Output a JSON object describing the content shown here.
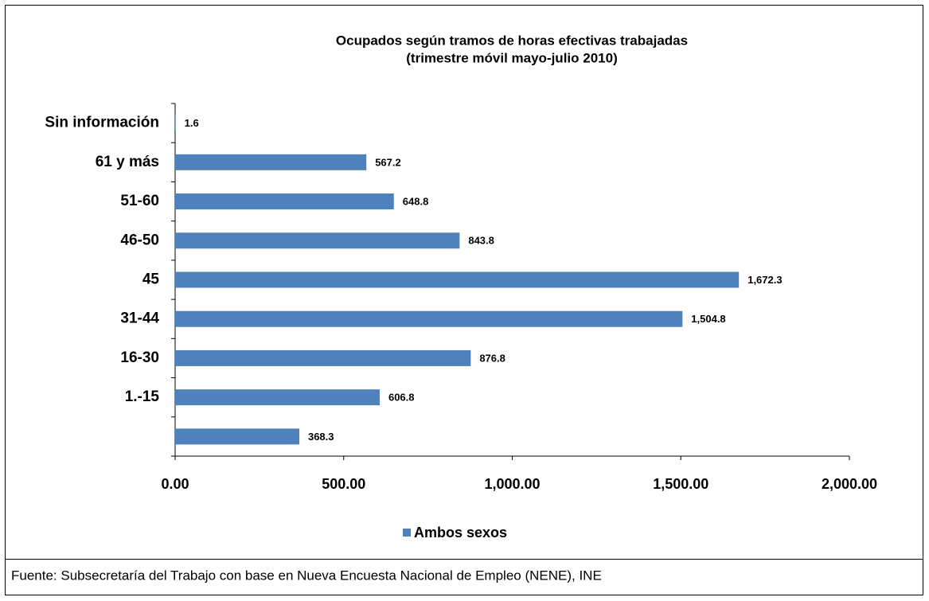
{
  "chart_data": {
    "type": "bar",
    "orientation": "horizontal",
    "title": "Ocupados según tramos de horas efectivas trabajadas",
    "subtitle": "(trimestre móvil mayo-julio 2010)",
    "categories": [
      "Sin información",
      "61 y más",
      "51-60",
      "46-50",
      "45",
      "31-44",
      "16-30",
      "1.-15",
      null
    ],
    "series": [
      {
        "name": "Ambos sexos",
        "color": "#4f81bd",
        "values": [
          1.6,
          567.2,
          648.8,
          843.8,
          1672.3,
          1504.8,
          876.8,
          606.8,
          368.3
        ],
        "value_labels": [
          "1.6",
          "567.2",
          "648.8",
          "843.8",
          "1,672.3",
          "1,504.8",
          "876.8",
          "606.8",
          "368.3"
        ]
      }
    ],
    "xlim": [
      0,
      2000
    ],
    "xticks": [
      {
        "value": 0,
        "label": "0.00"
      },
      {
        "value": 500,
        "label": "500.00"
      },
      {
        "value": 1000,
        "label": "1,000.00"
      },
      {
        "value": 1500,
        "label": "1,500.00"
      },
      {
        "value": 2000,
        "label": "2,000.00"
      }
    ],
    "grid": false,
    "legend": "bottom",
    "source": "Fuente: Subsecretaría del Trabajo con base en Nueva Encuesta Nacional de Empleo (NENE), INE"
  }
}
